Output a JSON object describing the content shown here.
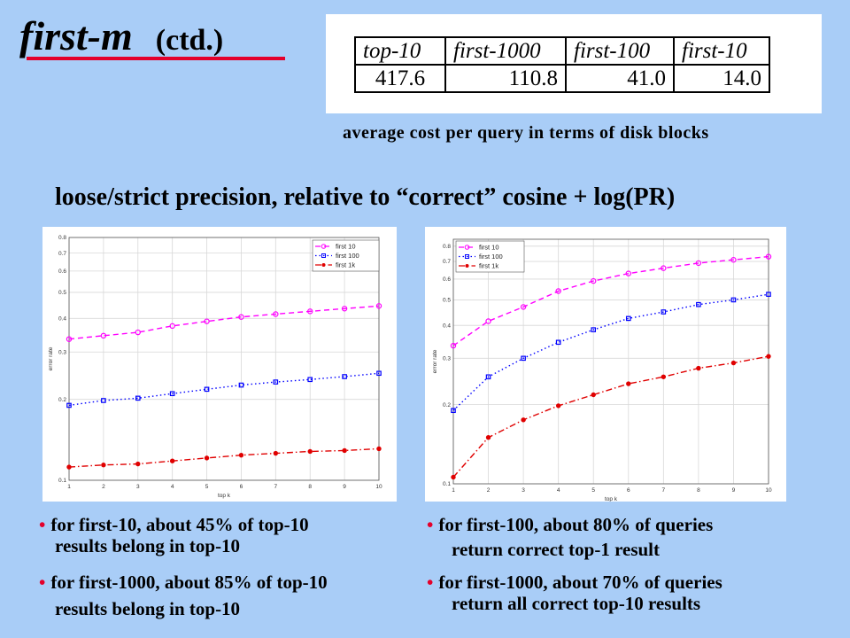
{
  "title": {
    "main": "first-m",
    "sub": "(ctd.)"
  },
  "cost_table": {
    "headers": [
      "top-10",
      "first-1000",
      "first-100",
      "first-10"
    ],
    "values": [
      "417.6",
      "110.8",
      "41.0",
      "14.0"
    ]
  },
  "caption": "average cost per query in terms of disk blocks",
  "subtitle": "loose/strict precision, relative to “correct” cosine + log(PR)",
  "colors": {
    "first10": "#ff00ff",
    "first100": "#0000ff",
    "first1k": "#e00000",
    "accent": "#e4002b"
  },
  "chart_data": [
    {
      "type": "line",
      "xlabel": "top k",
      "ylabel": "error rate",
      "yscale": "log",
      "ylim": [
        0.1,
        0.8
      ],
      "xlim": [
        1,
        10
      ],
      "x": [
        1,
        2,
        3,
        4,
        5,
        6,
        7,
        8,
        9,
        10
      ],
      "yticks": [
        "0.1",
        "0.2",
        "0.3",
        "0.4",
        "0.5",
        "0.6",
        "0.7",
        "0.8"
      ],
      "xticks": [
        "1",
        "2",
        "3",
        "4",
        "5",
        "6",
        "7",
        "8",
        "9",
        "10"
      ],
      "grid": true,
      "legend": "top-right",
      "series": [
        {
          "name": "first 10",
          "values": [
            0.335,
            0.345,
            0.355,
            0.375,
            0.39,
            0.405,
            0.415,
            0.425,
            0.435,
            0.445
          ]
        },
        {
          "name": "first 100",
          "values": [
            0.19,
            0.198,
            0.202,
            0.21,
            0.218,
            0.226,
            0.232,
            0.237,
            0.243,
            0.25
          ]
        },
        {
          "name": "first 1k",
          "values": [
            0.112,
            0.114,
            0.115,
            0.118,
            0.121,
            0.124,
            0.126,
            0.128,
            0.129,
            0.131
          ]
        }
      ]
    },
    {
      "type": "line",
      "xlabel": "top k",
      "ylabel": "error rate",
      "yscale": "log",
      "ylim": [
        0.1,
        0.85
      ],
      "xlim": [
        1,
        10
      ],
      "x": [
        1,
        2,
        3,
        4,
        5,
        6,
        7,
        8,
        9,
        10
      ],
      "yticks": [
        "0.1",
        "0.2",
        "0.3",
        "0.4",
        "0.5",
        "0.6",
        "0.7",
        "0.8"
      ],
      "xticks": [
        "1",
        "2",
        "3",
        "4",
        "5",
        "6",
        "7",
        "8",
        "9",
        "10"
      ],
      "grid": true,
      "legend": "top-left",
      "series": [
        {
          "name": "first 10",
          "values": [
            0.335,
            0.415,
            0.47,
            0.54,
            0.59,
            0.63,
            0.66,
            0.69,
            0.71,
            0.73
          ]
        },
        {
          "name": "first 100",
          "values": [
            0.19,
            0.255,
            0.3,
            0.345,
            0.385,
            0.425,
            0.45,
            0.48,
            0.5,
            0.525
          ]
        },
        {
          "name": "first 1k",
          "values": [
            0.106,
            0.15,
            0.175,
            0.198,
            0.218,
            0.24,
            0.255,
            0.275,
            0.288,
            0.305
          ]
        }
      ]
    }
  ],
  "bullets_left": [
    {
      "l1": "for first-10, about 45% of top-10",
      "l2": "results belong in top-10"
    },
    {
      "l1": "for first-1000, about 85% of top-10",
      "l2": "results belong in top-10"
    }
  ],
  "bullets_right": [
    {
      "l1": "for first-100, about 80% of queries",
      "l2": "return correct top-1 result"
    },
    {
      "l1": "for first-1000, about 70% of queries",
      "l2": "return all correct top-10 results"
    }
  ]
}
